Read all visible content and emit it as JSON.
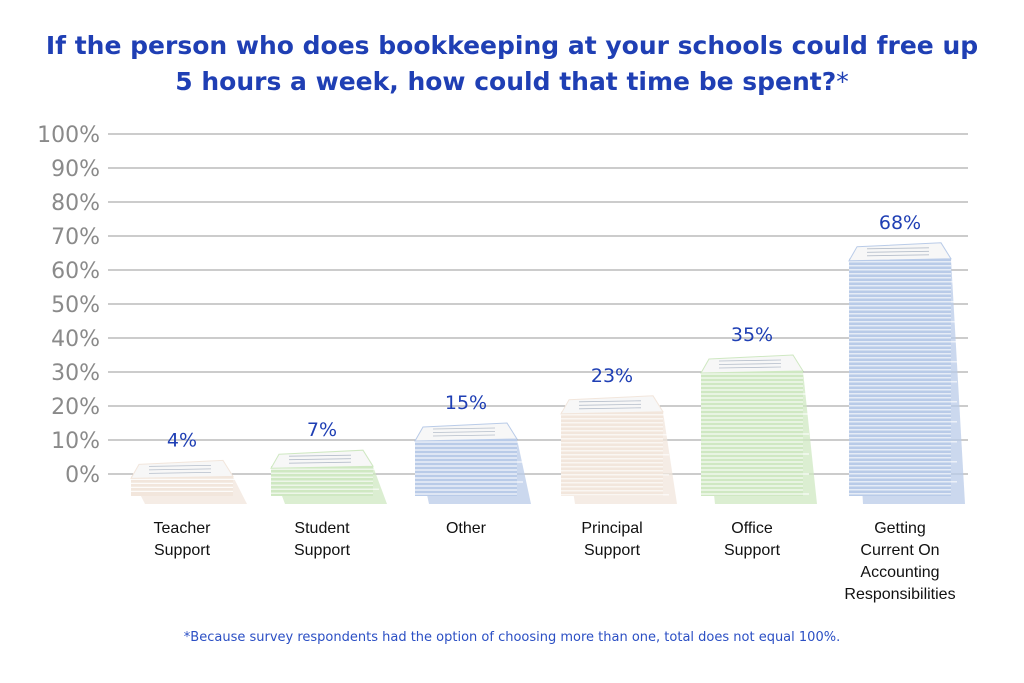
{
  "title": "If the person who does bookkeeping at your schools could free up 5 hours a week, how could that time be spent?",
  "title_marker": "*",
  "footnote": "*Because survey respondents had the option of choosing more than one, total does not equal 100%.",
  "chart_data": {
    "type": "bar",
    "title": "If the person who does bookkeeping at your schools could free up 5 hours a week, how could that time be spent?*",
    "categories": [
      [
        "Teacher",
        "Support"
      ],
      [
        "Student",
        "Support"
      ],
      [
        "Other"
      ],
      [
        "Principal",
        "Support"
      ],
      [
        "Office",
        "Support"
      ],
      [
        "Getting",
        "Current On",
        "Accounting",
        "Responsibilities"
      ]
    ],
    "values": [
      4,
      7,
      15,
      23,
      35,
      68
    ],
    "value_labels": [
      "4%",
      "7%",
      "15%",
      "23%",
      "35%",
      "68%"
    ],
    "bar_colors": [
      "#f2e6dc",
      "#cfe8c2",
      "#b9cbe8",
      "#f2e6dc",
      "#cfe8c2",
      "#b9cbe8"
    ],
    "yticks": [
      "0%",
      "10%",
      "20%",
      "30%",
      "40%",
      "50%",
      "60%",
      "70%",
      "80%",
      "90%",
      "100%"
    ],
    "ylim": [
      0,
      100
    ],
    "grid": true,
    "colors": {
      "title": "#1f3fb4",
      "value_label": "#1f3fb4",
      "tick_label": "#8a8a8a",
      "category_label": "#111111",
      "grid": "#9a9a9a"
    }
  }
}
